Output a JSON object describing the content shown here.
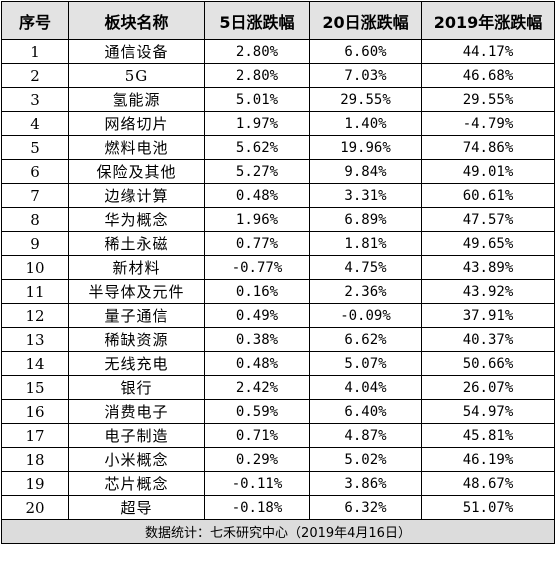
{
  "headers": [
    "序号",
    "板块名称",
    "5日涨跌幅",
    "20日涨跌幅",
    "2019年涨跌幅"
  ],
  "rows": [
    {
      "idx": "1",
      "name": "通信设备",
      "d5": "2.80%",
      "d20": "6.60%",
      "ytd": "44.17%"
    },
    {
      "idx": "2",
      "name": "5G",
      "d5": "2.80%",
      "d20": "7.03%",
      "ytd": "46.68%"
    },
    {
      "idx": "3",
      "name": "氢能源",
      "d5": "5.01%",
      "d20": "29.55%",
      "ytd": "29.55%"
    },
    {
      "idx": "4",
      "name": "网络切片",
      "d5": "1.97%",
      "d20": "1.40%",
      "ytd": "-4.79%"
    },
    {
      "idx": "5",
      "name": "燃料电池",
      "d5": "5.62%",
      "d20": "19.96%",
      "ytd": "74.86%"
    },
    {
      "idx": "6",
      "name": "保险及其他",
      "d5": "5.27%",
      "d20": "9.84%",
      "ytd": "49.01%"
    },
    {
      "idx": "7",
      "name": "边缘计算",
      "d5": "0.48%",
      "d20": "3.31%",
      "ytd": "60.61%"
    },
    {
      "idx": "8",
      "name": "华为概念",
      "d5": "1.96%",
      "d20": "6.89%",
      "ytd": "47.57%"
    },
    {
      "idx": "9",
      "name": "稀土永磁",
      "d5": "0.77%",
      "d20": "1.81%",
      "ytd": "49.65%"
    },
    {
      "idx": "10",
      "name": "新材料",
      "d5": "-0.77%",
      "d20": "4.75%",
      "ytd": "43.89%"
    },
    {
      "idx": "11",
      "name": "半导体及元件",
      "d5": "0.16%",
      "d20": "2.36%",
      "ytd": "43.92%"
    },
    {
      "idx": "12",
      "name": "量子通信",
      "d5": "0.49%",
      "d20": "-0.09%",
      "ytd": "37.91%"
    },
    {
      "idx": "13",
      "name": "稀缺资源",
      "d5": "0.38%",
      "d20": "6.62%",
      "ytd": "40.37%"
    },
    {
      "idx": "14",
      "name": "无线充电",
      "d5": "0.48%",
      "d20": "5.07%",
      "ytd": "50.66%"
    },
    {
      "idx": "15",
      "name": "银行",
      "d5": "2.42%",
      "d20": "4.04%",
      "ytd": "26.07%"
    },
    {
      "idx": "16",
      "name": "消费电子",
      "d5": "0.59%",
      "d20": "6.40%",
      "ytd": "54.97%"
    },
    {
      "idx": "17",
      "name": "电子制造",
      "d5": "0.71%",
      "d20": "4.87%",
      "ytd": "45.81%"
    },
    {
      "idx": "18",
      "name": "小米概念",
      "d5": "0.29%",
      "d20": "5.02%",
      "ytd": "46.19%"
    },
    {
      "idx": "19",
      "name": "芯片概念",
      "d5": "-0.11%",
      "d20": "3.86%",
      "ytd": "48.67%"
    },
    {
      "idx": "20",
      "name": "超导",
      "d5": "-0.18%",
      "d20": "6.32%",
      "ytd": "51.07%"
    }
  ],
  "footer": "数据统计：七禾研究中心（2019年4月16日）",
  "colors": {
    "header_bg": "#e3e3e3",
    "footer_bg": "#dcdcdc",
    "border": "#000000"
  }
}
